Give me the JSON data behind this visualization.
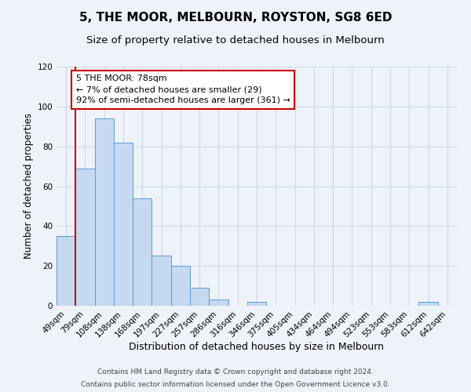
{
  "title": "5, THE MOOR, MELBOURN, ROYSTON, SG8 6ED",
  "subtitle": "Size of property relative to detached houses in Melbourn",
  "xlabel": "Distribution of detached houses by size in Melbourn",
  "ylabel": "Number of detached properties",
  "bar_labels": [
    "49sqm",
    "79sqm",
    "108sqm",
    "138sqm",
    "168sqm",
    "197sqm",
    "227sqm",
    "257sqm",
    "286sqm",
    "316sqm",
    "346sqm",
    "375sqm",
    "405sqm",
    "434sqm",
    "464sqm",
    "494sqm",
    "523sqm",
    "553sqm",
    "583sqm",
    "612sqm",
    "642sqm"
  ],
  "bar_heights": [
    35,
    69,
    94,
    82,
    54,
    25,
    20,
    9,
    3,
    0,
    2,
    0,
    0,
    0,
    0,
    0,
    0,
    0,
    0,
    2,
    0
  ],
  "bar_color": "#c5d9f0",
  "bar_edgecolor": "#5b9bd5",
  "grid_color": "#d0d8e8",
  "background_color": "#eef2f9",
  "annotation_line1": "5 THE MOOR: 78sqm",
  "annotation_line2": "← 7% of detached houses are smaller (29)",
  "annotation_line3": "92% of semi-detached houses are larger (361) →",
  "annotation_box_color": "#ffffff",
  "annotation_box_edgecolor": "#cc0000",
  "red_line_x": 0.5,
  "ylim": [
    0,
    120
  ],
  "yticks": [
    0,
    20,
    40,
    60,
    80,
    100,
    120
  ],
  "footer_line1": "Contains HM Land Registry data © Crown copyright and database right 2024.",
  "footer_line2": "Contains public sector information licensed under the Open Government Licence v3.0.",
  "title_fontsize": 11,
  "subtitle_fontsize": 9.5,
  "xlabel_fontsize": 9,
  "ylabel_fontsize": 8.5,
  "tick_fontsize": 7.5,
  "annotation_fontsize": 8,
  "footer_fontsize": 6.5
}
